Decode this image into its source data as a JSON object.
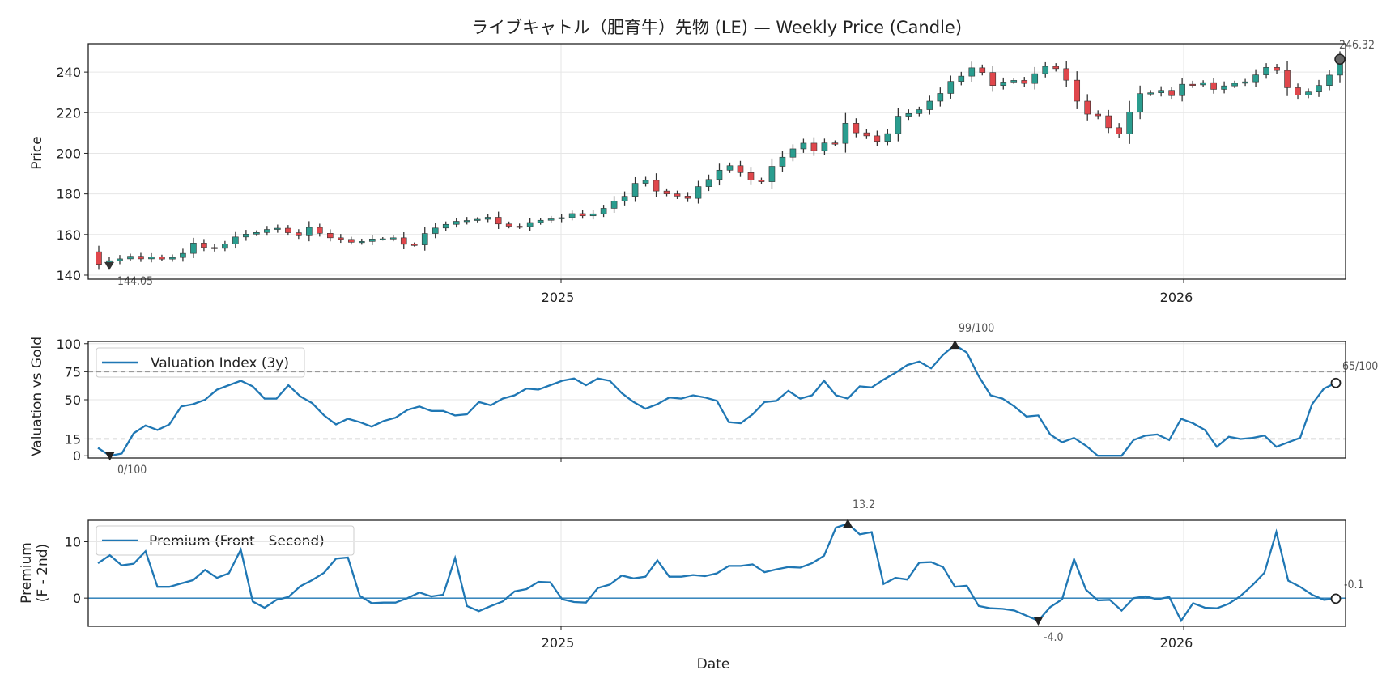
{
  "chart_data": [
    {
      "type": "candlestick",
      "title": "ライブキャトル（肥育牛）先物 (LE) — Weekly Price (Candle)",
      "ylabel": "Price",
      "ylim": [
        138,
        254
      ],
      "yticks": [
        140,
        160,
        180,
        200,
        220,
        240
      ],
      "xticks": [
        "2025",
        "2026"
      ],
      "colors": {
        "up": "#2a9d8f",
        "down": "#e0474c"
      },
      "closes": [
        145.3,
        147.1,
        148.0,
        149.3,
        148.0,
        148.9,
        147.9,
        148.7,
        150.7,
        155.8,
        153.6,
        153.2,
        155.3,
        158.8,
        160.2,
        161.0,
        162.5,
        163.1,
        160.9,
        159.4,
        163.5,
        160.6,
        158.4,
        157.6,
        156.2,
        156.6,
        157.8,
        157.9,
        158.4,
        155.2,
        154.9,
        160.5,
        163.2,
        165.0,
        166.5,
        166.9,
        167.5,
        168.5,
        165.2,
        164.1,
        163.9,
        165.9,
        167.0,
        167.7,
        168.3,
        170.3,
        169.2,
        170.2,
        172.9,
        176.5,
        178.8,
        185.2,
        186.7,
        181.4,
        180.0,
        178.9,
        177.8,
        183.6,
        187.1,
        191.7,
        193.9,
        190.5,
        186.9,
        186.0,
        193.6,
        198.1,
        202.2,
        205.0,
        201.3,
        205.1,
        204.9,
        214.8,
        210.1,
        208.6,
        205.9,
        209.7,
        218.3,
        219.6,
        221.5,
        225.7,
        229.5,
        235.4,
        238.0,
        242.1,
        239.8,
        233.4,
        235.1,
        235.9,
        234.4,
        239.2,
        242.8,
        241.7,
        236.0,
        225.7,
        219.3,
        218.5,
        212.6,
        209.5,
        220.4,
        229.4,
        229.8,
        231.0,
        228.4,
        234.0,
        233.7,
        234.8,
        231.5,
        233.2,
        234.5,
        235.2,
        238.6,
        242.3,
        240.8,
        232.3,
        228.7,
        230.2,
        233.4,
        238.5,
        246.32
      ],
      "annotations": {
        "max_label": "246.32",
        "min_label": "144.05"
      }
    },
    {
      "type": "line",
      "ylabel": "Valuation vs Gold",
      "ylim": [
        -2,
        102
      ],
      "yticks": [
        0,
        15,
        50,
        75,
        100
      ],
      "reference_lines": [
        15,
        75
      ],
      "series": [
        {
          "name": "Valuation Index (3y)",
          "color": "#1f77b4",
          "values": [
            7,
            0,
            2,
            20,
            27,
            23,
            28,
            44,
            46,
            50,
            59,
            63,
            67,
            62,
            51,
            51,
            63,
            53,
            47,
            36,
            28,
            33,
            30,
            26,
            31,
            34,
            41,
            44,
            40,
            40,
            36,
            37,
            48,
            45,
            51,
            54,
            60,
            59,
            63,
            67,
            69,
            63,
            69,
            67,
            56,
            48,
            42,
            46,
            52,
            51,
            54,
            52,
            49,
            30,
            29,
            37,
            48,
            49,
            58,
            51,
            54,
            67,
            54,
            51,
            62,
            61,
            68,
            74,
            81,
            84,
            78,
            90,
            99,
            92,
            71,
            54,
            51,
            44,
            35,
            36,
            19,
            12,
            16,
            9,
            0,
            0,
            0,
            14,
            18,
            19,
            14,
            33,
            29,
            23,
            8,
            17,
            15,
            16,
            18,
            8,
            12,
            16,
            46,
            60,
            65
          ]
        }
      ],
      "annotations": {
        "max_label": "99/100",
        "min_label": "0/100",
        "last_label": "65/100"
      }
    },
    {
      "type": "line",
      "ylabel": "Premium\n(F - 2nd)",
      "ylim": [
        -5,
        13.8
      ],
      "yticks": [
        0,
        10
      ],
      "reference_lines": [
        0
      ],
      "series": [
        {
          "name": "Premium (Front - Second)",
          "color": "#1f77b4",
          "values": [
            6.2,
            7.6,
            5.8,
            6.1,
            8.3,
            2.0,
            2.0,
            2.6,
            3.2,
            5.0,
            3.6,
            4.4,
            8.6,
            -0.6,
            -1.7,
            -0.3,
            0.2,
            2.1,
            3.2,
            4.5,
            7.0,
            7.2,
            0.4,
            -0.9,
            -0.8,
            -0.8,
            0.0,
            1.0,
            0.3,
            0.6,
            7.1,
            -1.4,
            -2.3,
            -1.4,
            -0.6,
            1.2,
            1.6,
            2.9,
            2.8,
            -0.2,
            -0.7,
            -0.8,
            1.8,
            2.4,
            4.0,
            3.5,
            3.8,
            6.7,
            3.8,
            3.8,
            4.1,
            3.9,
            4.4,
            5.7,
            5.7,
            6.0,
            4.6,
            5.1,
            5.5,
            5.4,
            6.2,
            7.5,
            12.5,
            13.2,
            11.3,
            11.7,
            2.5,
            3.6,
            3.3,
            6.3,
            6.4,
            5.5,
            2.0,
            2.2,
            -1.4,
            -1.8,
            -1.9,
            -2.2,
            -3.1,
            -4.0,
            -1.6,
            -0.2,
            6.9,
            1.5,
            -0.4,
            -0.3,
            -2.2,
            0.0,
            0.3,
            -0.2,
            0.2,
            -4.0,
            -0.9,
            -1.7,
            -1.8,
            -1.0,
            0.4,
            2.3,
            4.5,
            11.7,
            3.1,
            2.0,
            0.6,
            -0.3,
            -0.1
          ]
        }
      ],
      "annotations": {
        "max_label": "13.2",
        "min_label": "-4.0",
        "last_label": "-0.1"
      },
      "xlabel": "Date",
      "xticks": [
        "2025",
        "2026"
      ]
    }
  ]
}
